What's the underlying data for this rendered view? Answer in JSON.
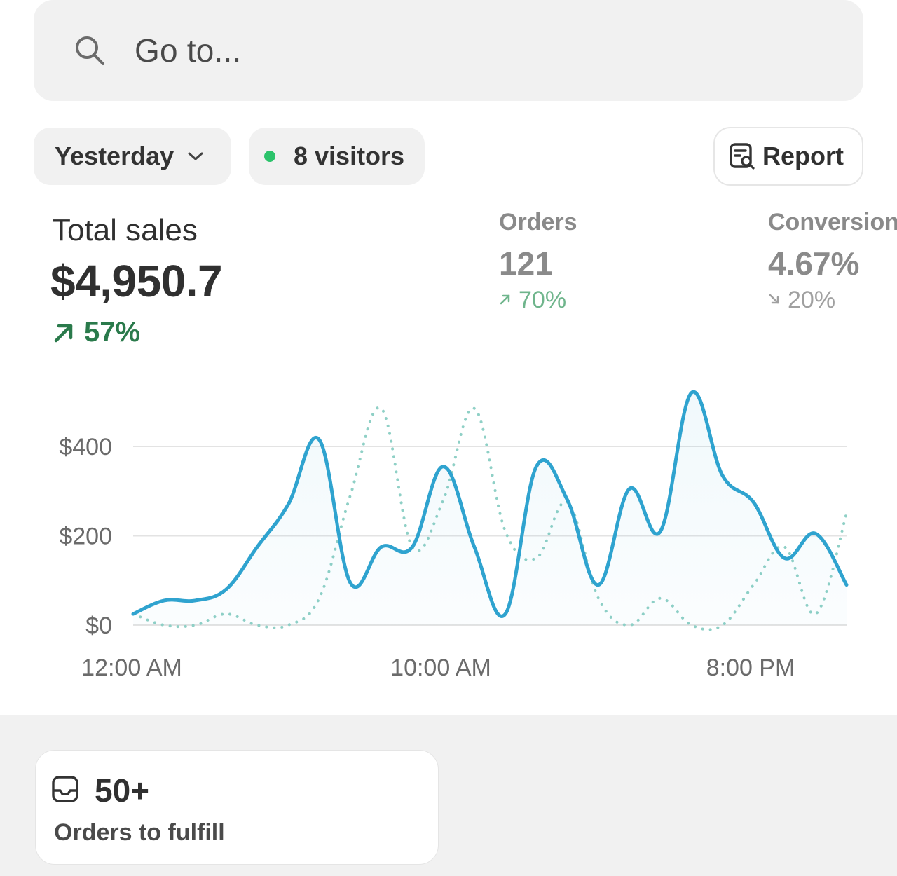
{
  "search": {
    "placeholder": "Go to...",
    "icon": "search-icon"
  },
  "filters": {
    "date_label": "Yesterday",
    "visitors_label": "8 visitors",
    "live_dot_color": "#2cc36b"
  },
  "report": {
    "label": "Report",
    "icon": "report-icon"
  },
  "metrics": {
    "total_sales": {
      "label": "Total sales",
      "value": "$4,950.7",
      "change": "57%",
      "direction": "up",
      "color": "#2a7a4b"
    },
    "orders": {
      "label": "Orders",
      "value": "121",
      "change": "70%",
      "direction": "up"
    },
    "conversion": {
      "label": "Conversion",
      "value": "4.67%",
      "change": "20%",
      "direction": "down"
    }
  },
  "chart_data": {
    "type": "line",
    "x_tick_labels": [
      "12:00 AM",
      "10:00 AM",
      "8:00 PM"
    ],
    "y_tick_labels": [
      "$0",
      "$200",
      "$400"
    ],
    "ylim": [
      0,
      500
    ],
    "grid": true,
    "series": [
      {
        "style": "solid",
        "color": "#2fa3cf",
        "values": [
          25,
          55,
          55,
          80,
          175,
          270,
          415,
          95,
          175,
          175,
          355,
          175,
          25,
          355,
          280,
          90,
          305,
          210,
          520,
          335,
          275,
          150,
          205,
          90
        ]
      },
      {
        "style": "dotted",
        "color": "#8fd0c6",
        "values": [
          25,
          0,
          0,
          25,
          0,
          0,
          60,
          290,
          485,
          175,
          280,
          485,
          210,
          150,
          275,
          60,
          0,
          60,
          0,
          0,
          90,
          175,
          25,
          250
        ]
      }
    ]
  },
  "fulfillment": {
    "count": "50+",
    "label": "Orders to fulfill",
    "icon": "inbox-icon"
  }
}
